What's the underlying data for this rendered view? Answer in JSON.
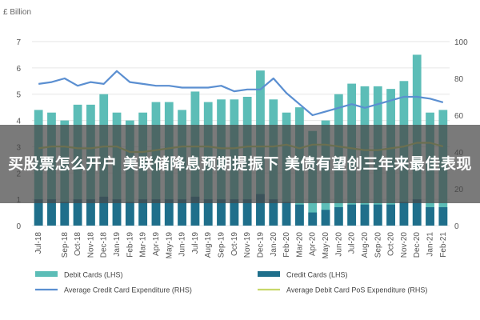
{
  "banner": {
    "text": "买股票怎么开户 美联储降息预期提振下 美债有望创三年来最佳表现"
  },
  "colors": {
    "debit_cards": "#5cbdb7",
    "credit_cards": "#1f6f8b",
    "avg_credit": "#5b8fd1",
    "avg_debit": "#c8d86a",
    "grid": "#e6e6e6"
  },
  "chart_data": {
    "type": "bar",
    "unit_label": "£ Billion",
    "categories": [
      "Jul-18",
      "Aug-18",
      "Sep-18",
      "Oct-18",
      "Nov-18",
      "Dec-18",
      "Jan-19",
      "Feb-19",
      "Mar-19",
      "Apr-19",
      "May-19",
      "Jun-19",
      "Jul-19",
      "Aug-19",
      "Sep-19",
      "Oct-19",
      "Nov-19",
      "Dec-19",
      "Jan-20",
      "Feb-20",
      "Mar-20",
      "Apr-20",
      "May-20",
      "Jun-20",
      "Jul-20",
      "Aug-20",
      "Sep-20",
      "Oct-20",
      "Nov-20",
      "Dec-20",
      "Jan-21",
      "Feb-21"
    ],
    "tick_labels": [
      "Jul-18",
      "",
      "Sep-18",
      "Oct-18",
      "Nov-18",
      "Dec-18",
      "Jan-19",
      "Feb-19",
      "Mar-19",
      "Apr-19",
      "May-19",
      "Jun-19",
      "Jul-19",
      "Aug-19",
      "Sep-19",
      "Oct-19",
      "Nov-19",
      "Dec-19",
      "Jan-20",
      "Feb-20",
      "Mar-20",
      "Apr-20",
      "May-20",
      "Jun-20",
      "Jul-20",
      "Aug-20",
      "Sep-20",
      "Oct-20",
      "Nov-20",
      "Dec-20",
      "Jan-21",
      "Feb-21"
    ],
    "y_left": {
      "min": 0,
      "max": 7,
      "ticks": [
        0,
        1,
        2,
        3,
        4,
        5,
        6,
        7
      ]
    },
    "y_right": {
      "min": 0,
      "max": 100,
      "ticks": [
        0,
        20,
        40,
        60,
        80,
        100
      ]
    },
    "series": [
      {
        "name": "Debit Cards (LHS)",
        "kind": "bar",
        "axis": "left",
        "values": [
          4.4,
          4.3,
          4.0,
          4.6,
          4.6,
          5.0,
          4.3,
          4.0,
          4.3,
          4.7,
          4.7,
          4.4,
          5.1,
          4.7,
          4.8,
          4.8,
          4.9,
          5.9,
          4.8,
          4.3,
          4.5,
          3.6,
          4.0,
          5.0,
          5.4,
          5.3,
          5.3,
          5.2,
          5.5,
          6.5,
          4.3,
          4.4
        ]
      },
      {
        "name": "Credit Cards (LHS)",
        "kind": "bar",
        "axis": "left",
        "values": [
          1.0,
          1.0,
          0.9,
          1.0,
          1.0,
          1.1,
          1.0,
          0.9,
          1.0,
          1.0,
          1.0,
          1.0,
          1.1,
          1.0,
          1.0,
          1.0,
          1.0,
          1.2,
          1.0,
          0.9,
          0.8,
          0.5,
          0.6,
          0.7,
          0.8,
          0.8,
          0.8,
          0.8,
          0.9,
          1.0,
          0.7,
          0.7
        ]
      },
      {
        "name": "Average Credit Card Expenditure (RHS)",
        "kind": "line",
        "axis": "right",
        "values": [
          77,
          78,
          80,
          76,
          78,
          77,
          84,
          78,
          77,
          76,
          76,
          75,
          75,
          75,
          76,
          73,
          74,
          74,
          80,
          72,
          66,
          60,
          62,
          64,
          66,
          64,
          66,
          68,
          70,
          70,
          69,
          67
        ]
      },
      {
        "name": "Average Debit Card PoS Expenditure (RHS)",
        "kind": "line",
        "axis": "right",
        "values": [
          42,
          43,
          43,
          42,
          42,
          43,
          43,
          40,
          40,
          41,
          42,
          43,
          43,
          43,
          42,
          42,
          43,
          43,
          43,
          44,
          42,
          44,
          44,
          43,
          42,
          41,
          41,
          42,
          43,
          45,
          45,
          43
        ]
      }
    ],
    "legend": {
      "placement": "bottom"
    },
    "grid": true
  }
}
